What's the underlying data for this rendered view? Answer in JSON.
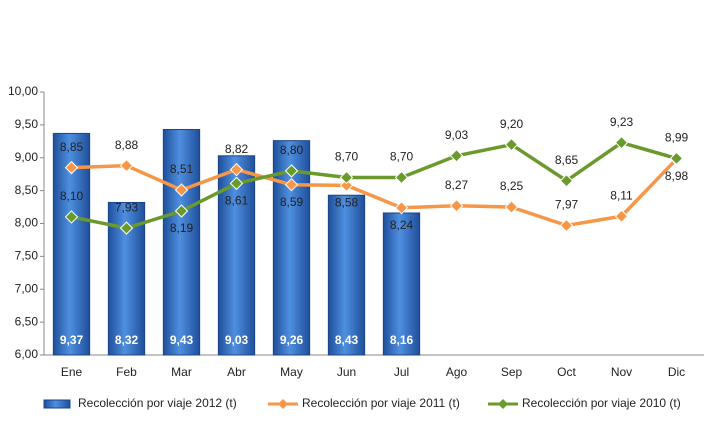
{
  "chart_data": {
    "type": "bar_line",
    "categories": [
      "Ene",
      "Feb",
      "Mar",
      "Abr",
      "May",
      "Jun",
      "Jul",
      "Ago",
      "Sep",
      "Oct",
      "Nov",
      "Dic"
    ],
    "series": [
      {
        "name": "Recolección por viaje 2012 (t)",
        "type": "bar",
        "color": "#2e6fc4",
        "values": [
          9.37,
          8.32,
          9.43,
          9.03,
          9.26,
          8.43,
          8.16,
          null,
          null,
          null,
          null,
          null
        ],
        "value_labels": [
          "9,37",
          "8,32",
          "9,43",
          "9,03",
          "9,26",
          "8,43",
          "8,16",
          null,
          null,
          null,
          null,
          null
        ]
      },
      {
        "name": "Recolección por viaje 2011 (t)",
        "type": "line",
        "color": "#f79646",
        "values": [
          8.85,
          8.88,
          8.51,
          8.82,
          8.59,
          8.58,
          8.24,
          8.27,
          8.25,
          7.97,
          8.11,
          8.98
        ],
        "value_labels": [
          "8,85",
          "8,88",
          "8,51",
          "8,82",
          "8,59",
          "8,58",
          "8,24",
          "8,27",
          "8,25",
          "7,97",
          "8,11",
          "8,98"
        ]
      },
      {
        "name": "Recolección por viaje 2010 (t)",
        "type": "line",
        "color": "#6a9a2c",
        "values": [
          8.1,
          7.93,
          8.19,
          8.61,
          8.8,
          8.7,
          8.7,
          9.03,
          9.2,
          8.65,
          9.23,
          8.99
        ],
        "value_labels": [
          "8,10",
          "7,93",
          "8,19",
          "8,61",
          "8,80",
          "8,70",
          "8,70",
          "9,03",
          "9,20",
          "8,65",
          "9,23",
          "8,99"
        ]
      }
    ],
    "ylim": [
      6,
      10
    ],
    "yticks": [
      {
        "value": 6,
        "label": "6,00"
      },
      {
        "value": 6.5,
        "label": "6,50"
      },
      {
        "value": 7,
        "label": "7,00"
      },
      {
        "value": 7.5,
        "label": "7,50"
      },
      {
        "value": 8,
        "label": "8,00"
      },
      {
        "value": 8.5,
        "label": "8,50"
      },
      {
        "value": 9,
        "label": "9,00"
      },
      {
        "value": 9.5,
        "label": "9,50"
      },
      {
        "value": 10,
        "label": "10,00"
      }
    ],
    "grid": false
  }
}
